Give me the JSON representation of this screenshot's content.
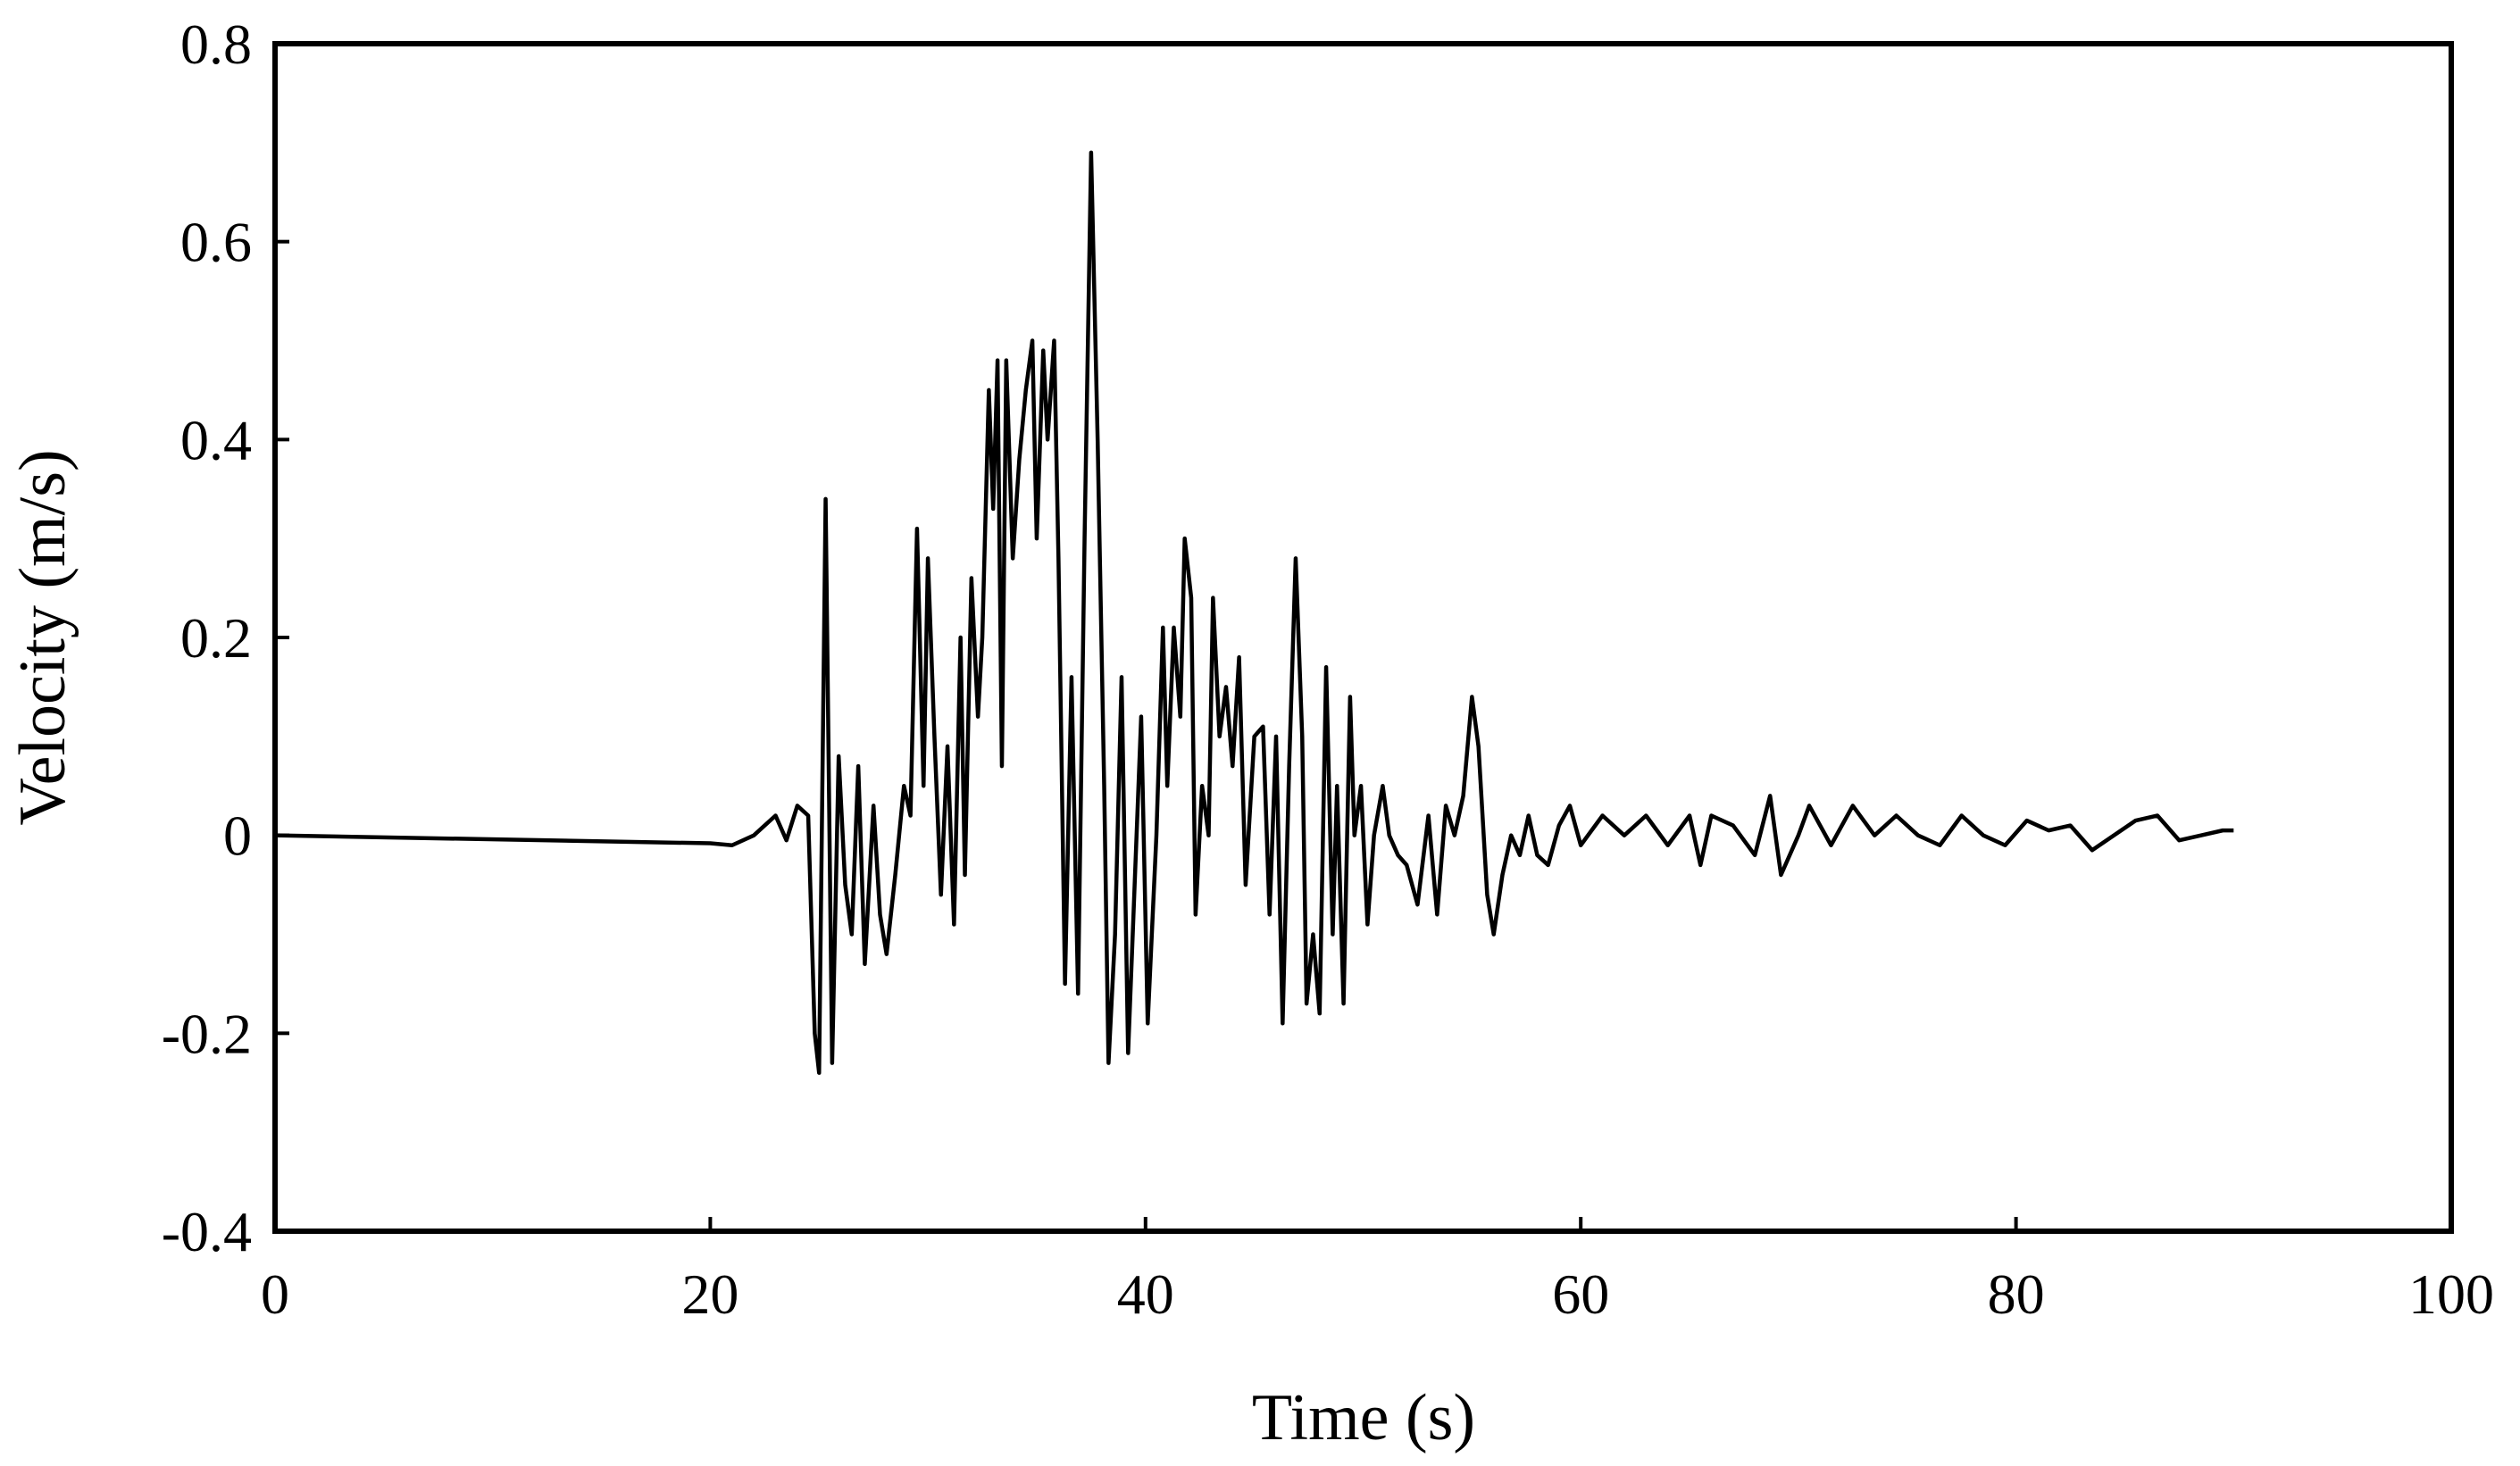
{
  "chart_data": {
    "type": "line",
    "x_label": "Time (s)",
    "y_label": "Velocity (m/s)",
    "color": "#000000",
    "x": [
      0,
      20,
      21,
      22,
      22.5,
      23,
      23.5,
      24,
      24.5,
      24.8,
      25.0,
      25.3,
      25.6,
      25.9,
      26.2,
      26.5,
      26.8,
      27.1,
      27.5,
      27.8,
      28.1,
      28.5,
      28.9,
      29.2,
      29.5,
      29.8,
      30.0,
      30.3,
      30.6,
      30.9,
      31.2,
      31.5,
      31.7,
      32.0,
      32.3,
      32.5,
      32.8,
      33.0,
      33.2,
      33.4,
      33.6,
      33.9,
      34.2,
      34.5,
      34.8,
      35.0,
      35.3,
      35.5,
      35.8,
      36.0,
      36.3,
      36.6,
      36.9,
      37.2,
      37.5,
      37.8,
      38.1,
      38.3,
      38.6,
      38.9,
      39.2,
      39.5,
      39.8,
      40.1,
      40.5,
      40.8,
      41.0,
      41.3,
      41.6,
      41.8,
      42.1,
      42.3,
      42.6,
      42.9,
      43.1,
      43.4,
      43.7,
      44.0,
      44.3,
      44.6,
      45.0,
      45.4,
      45.7,
      46.0,
      46.3,
      46.6,
      46.9,
      47.2,
      47.4,
      47.7,
      48.0,
      48.3,
      48.6,
      48.8,
      49.1,
      49.4,
      49.6,
      49.9,
      50.2,
      50.5,
      50.9,
      51.2,
      51.6,
      52.0,
      52.5,
      53.0,
      53.4,
      53.8,
      54.2,
      54.6,
      55.0,
      55.3,
      55.7,
      56.0,
      56.4,
      56.8,
      57.2,
      57.6,
      58.0,
      58.5,
      59.0,
      59.5,
      60.0,
      61,
      62,
      63,
      64,
      65,
      65.5,
      66,
      67,
      68,
      68.7,
      69.2,
      70,
      70.5,
      71.5,
      72.5,
      73.5,
      74.5,
      75.5,
      76.5,
      77.5,
      78.5,
      79.5,
      80.5,
      81.5,
      82.5,
      83.5,
      84.5,
      85.5,
      86.5,
      87.5,
      88.5,
      89.5,
      90
    ],
    "values": [
      0,
      -0.008,
      -0.01,
      0.0,
      0.01,
      0.02,
      -0.005,
      0.03,
      0.02,
      -0.2,
      -0.24,
      0.34,
      -0.23,
      0.08,
      -0.05,
      -0.1,
      0.07,
      -0.13,
      0.03,
      -0.08,
      -0.12,
      -0.04,
      0.05,
      0.02,
      0.31,
      0.05,
      0.28,
      0.1,
      -0.06,
      0.09,
      -0.09,
      0.2,
      -0.04,
      0.26,
      0.12,
      0.2,
      0.45,
      0.33,
      0.48,
      0.07,
      0.48,
      0.28,
      0.38,
      0.45,
      0.5,
      0.3,
      0.49,
      0.4,
      0.5,
      0.28,
      -0.15,
      0.16,
      -0.16,
      0.3,
      0.69,
      0.4,
      0.05,
      -0.23,
      -0.1,
      0.16,
      -0.22,
      -0.05,
      0.12,
      -0.19,
      0.0,
      0.21,
      0.05,
      0.21,
      0.12,
      0.3,
      0.24,
      -0.08,
      0.05,
      0.0,
      0.24,
      0.1,
      0.15,
      0.07,
      0.18,
      -0.05,
      0.1,
      0.11,
      -0.08,
      0.1,
      -0.19,
      0.07,
      0.28,
      0.1,
      -0.17,
      -0.1,
      -0.18,
      0.17,
      -0.1,
      0.05,
      -0.17,
      0.14,
      0.0,
      0.05,
      -0.09,
      0.0,
      0.05,
      0.0,
      -0.02,
      -0.03,
      -0.07,
      0.02,
      -0.08,
      0.03,
      0.0,
      0.04,
      0.14,
      0.09,
      -0.06,
      -0.1,
      -0.04,
      0.0,
      -0.02,
      0.02,
      -0.02,
      -0.03,
      0.01,
      0.03,
      -0.01,
      0.02,
      0.0,
      0.02,
      -0.01,
      0.02,
      -0.03,
      0.02,
      0.01,
      -0.02,
      0.04,
      -0.04,
      0.0,
      0.03,
      -0.01,
      0.03,
      0.0,
      0.02,
      0.0,
      -0.01,
      0.02,
      0.0,
      -0.01,
      0.015,
      0.005,
      0.01,
      -0.015,
      0.0,
      0.015,
      0.02,
      -0.005,
      0.0,
      0.005,
      0.005
    ],
    "xlim": [
      0,
      100
    ],
    "xticks": [
      0,
      20,
      40,
      60,
      80,
      100
    ],
    "ylim": [
      -0.4,
      0.8
    ],
    "yticks": [
      -0.4,
      -0.2,
      0,
      0.2,
      0.4,
      0.6,
      0.8
    ]
  }
}
